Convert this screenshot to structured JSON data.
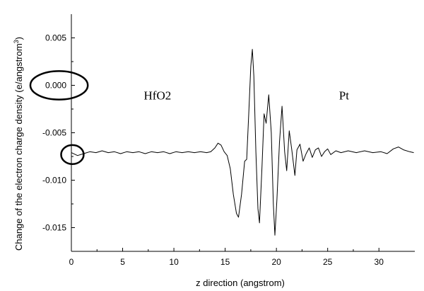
{
  "chart_data": {
    "type": "line",
    "title": "",
    "xlabel": "z direction (angstrom)",
    "ylabel_main": "Change of the electron charge density (e/angstrom",
    "ylabel_sup": "3",
    "ylabel_close": ")",
    "xlim": [
      0,
      33.5
    ],
    "ylim": [
      -0.0175,
      0.0075
    ],
    "x_ticks": [
      0,
      5,
      10,
      15,
      20,
      25,
      30
    ],
    "x_tick_labels": [
      "0",
      "5",
      "10",
      "15",
      "20",
      "25",
      "30"
    ],
    "y_ticks": [
      0.005,
      0.0,
      -0.005,
      -0.01,
      -0.015
    ],
    "y_tick_labels": [
      "0.005",
      "0.000",
      "-0.005",
      "-0.010",
      "-0.015"
    ],
    "annotations": [
      {
        "text": "HfO2",
        "x": 8.4,
        "y": -0.0015
      },
      {
        "text": "Pt",
        "x": 26.6,
        "y": -0.0015
      }
    ],
    "hand_marks": [
      {
        "shape": "ellipse",
        "cx": -1.2,
        "cy": 0.0,
        "rx": 2.8,
        "ry": 0.0015
      },
      {
        "shape": "circle",
        "cx": 0.1,
        "cy": -0.0073,
        "rx": 1.1,
        "ry": 0.001
      }
    ],
    "series": [
      {
        "points": [
          [
            0.0,
            -0.0071
          ],
          [
            0.6,
            -0.0074
          ],
          [
            1.2,
            -0.0072
          ],
          [
            1.8,
            -0.007
          ],
          [
            2.4,
            -0.0071
          ],
          [
            3.0,
            -0.0069
          ],
          [
            3.6,
            -0.0071
          ],
          [
            4.2,
            -0.007
          ],
          [
            4.8,
            -0.0072
          ],
          [
            5.4,
            -0.007
          ],
          [
            6.0,
            -0.0071
          ],
          [
            6.6,
            -0.007
          ],
          [
            7.2,
            -0.0072
          ],
          [
            7.8,
            -0.007
          ],
          [
            8.4,
            -0.0071
          ],
          [
            9.0,
            -0.007
          ],
          [
            9.6,
            -0.0072
          ],
          [
            10.2,
            -0.007
          ],
          [
            10.8,
            -0.0071
          ],
          [
            11.4,
            -0.007
          ],
          [
            12.0,
            -0.0071
          ],
          [
            12.6,
            -0.007
          ],
          [
            13.2,
            -0.0071
          ],
          [
            13.6,
            -0.007
          ],
          [
            14.0,
            -0.0066
          ],
          [
            14.3,
            -0.0061
          ],
          [
            14.6,
            -0.0063
          ],
          [
            14.9,
            -0.007
          ],
          [
            15.2,
            -0.0074
          ],
          [
            15.5,
            -0.0088
          ],
          [
            15.8,
            -0.0115
          ],
          [
            16.1,
            -0.0135
          ],
          [
            16.3,
            -0.0139
          ],
          [
            16.6,
            -0.0115
          ],
          [
            16.9,
            -0.008
          ],
          [
            17.1,
            -0.0078
          ],
          [
            17.3,
            -0.003
          ],
          [
            17.5,
            0.002
          ],
          [
            17.65,
            0.0038
          ],
          [
            17.8,
            0.001
          ],
          [
            18.0,
            -0.007
          ],
          [
            18.2,
            -0.013
          ],
          [
            18.35,
            -0.0145
          ],
          [
            18.6,
            -0.0085
          ],
          [
            18.8,
            -0.003
          ],
          [
            19.0,
            -0.004
          ],
          [
            19.25,
            -0.001
          ],
          [
            19.5,
            -0.005
          ],
          [
            19.7,
            -0.0125
          ],
          [
            19.85,
            -0.0158
          ],
          [
            20.05,
            -0.012
          ],
          [
            20.3,
            -0.006
          ],
          [
            20.55,
            -0.0022
          ],
          [
            20.8,
            -0.007
          ],
          [
            21.0,
            -0.009
          ],
          [
            21.25,
            -0.0048
          ],
          [
            21.5,
            -0.0068
          ],
          [
            21.8,
            -0.0095
          ],
          [
            22.0,
            -0.0068
          ],
          [
            22.3,
            -0.0062
          ],
          [
            22.6,
            -0.008
          ],
          [
            22.9,
            -0.0072
          ],
          [
            23.2,
            -0.0066
          ],
          [
            23.5,
            -0.0076
          ],
          [
            23.8,
            -0.0068
          ],
          [
            24.1,
            -0.0066
          ],
          [
            24.4,
            -0.0075
          ],
          [
            24.7,
            -0.007
          ],
          [
            25.0,
            -0.0067
          ],
          [
            25.3,
            -0.0073
          ],
          [
            25.8,
            -0.0069
          ],
          [
            26.3,
            -0.0071
          ],
          [
            27.0,
            -0.0069
          ],
          [
            27.8,
            -0.0071
          ],
          [
            28.6,
            -0.0069
          ],
          [
            29.4,
            -0.0071
          ],
          [
            30.2,
            -0.007
          ],
          [
            30.8,
            -0.0072
          ],
          [
            31.4,
            -0.0067
          ],
          [
            31.9,
            -0.0065
          ],
          [
            32.4,
            -0.0068
          ],
          [
            33.0,
            -0.007
          ],
          [
            33.4,
            -0.0071
          ]
        ]
      }
    ]
  }
}
